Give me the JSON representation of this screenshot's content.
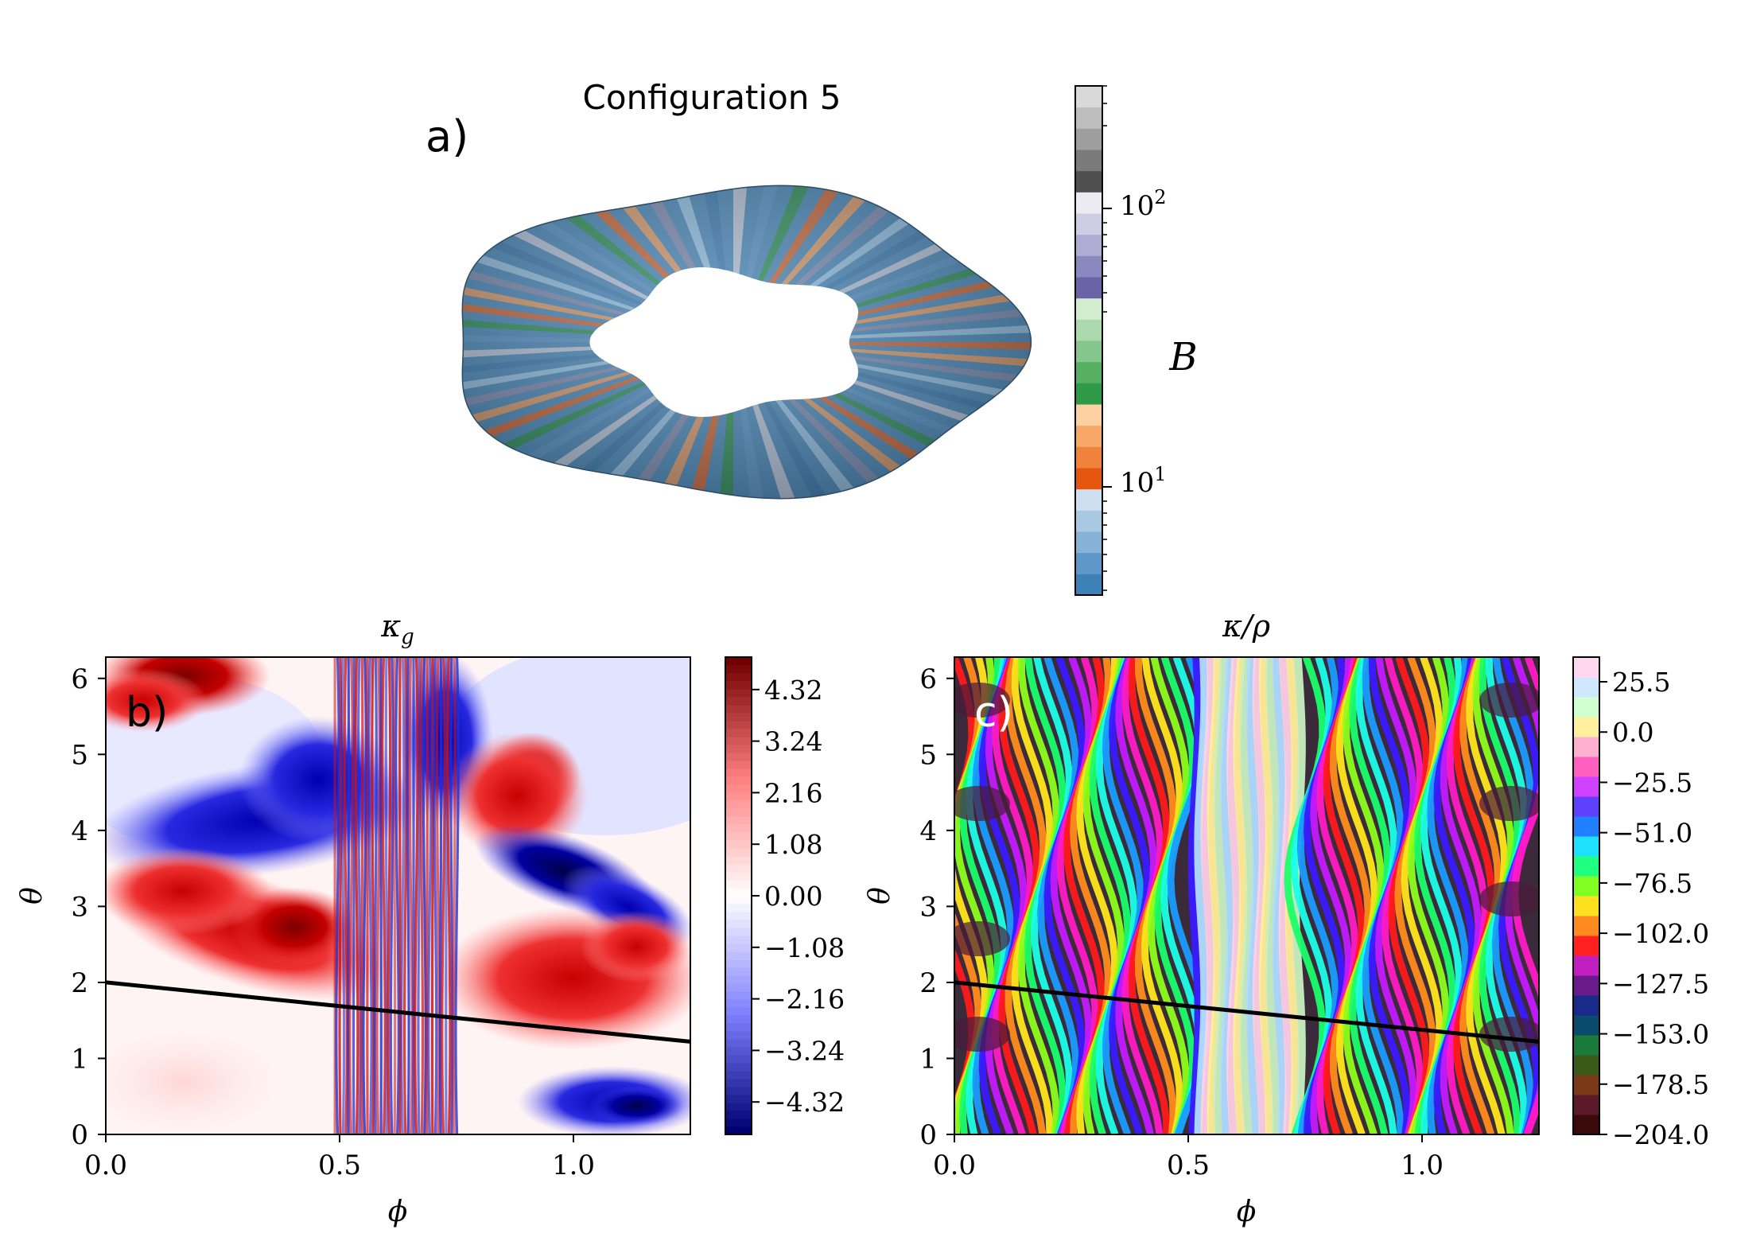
{
  "figure": {
    "title": "Configuration 5",
    "panel_a_label": "a)",
    "panel_b_label": "b)",
    "panel_c_label": "c)"
  },
  "colors": {
    "background": "#ffffff",
    "line": "#000000",
    "positive": "#cc0000",
    "negative": "#0000cc"
  },
  "chart_data": [
    {
      "type": "surface-3d",
      "panel": "a",
      "title": "Configuration 5",
      "colorbar": {
        "label": "B",
        "scale": "log",
        "tick_labels": [
          "10^1",
          "10^2"
        ],
        "colors_bottom_to_top": [
          "#3e80b8",
          "#5f98c8",
          "#85b2d6",
          "#a9c9e3",
          "#cddff0",
          "#e6550d",
          "#f0823c",
          "#f8a866",
          "#fcd0a0",
          "#2e9a47",
          "#57b061",
          "#84c68b",
          "#abd9ad",
          "#d2ecce",
          "#6a63a7",
          "#8b87bf",
          "#aeacd2",
          "#cfcde4",
          "#ecebf4",
          "#4f4f4f",
          "#7a7a7a",
          "#9e9e9e",
          "#bdbdbd",
          "#d9d9d9"
        ]
      }
    },
    {
      "type": "heatmap",
      "panel": "b",
      "title": "κ_g",
      "xlabel": "ϕ",
      "ylabel": "θ",
      "xlim": [
        0.0,
        1.25
      ],
      "ylim": [
        0,
        6.28
      ],
      "x_ticks": [
        "0.0",
        "0.5",
        "1.0"
      ],
      "y_ticks": [
        "0",
        "1",
        "2",
        "3",
        "4",
        "5",
        "6"
      ],
      "colorbar_ticks": [
        "4.32",
        "3.24",
        "2.16",
        "1.08",
        "0.00",
        "−1.08",
        "−2.16",
        "−3.24",
        "−4.32"
      ],
      "colorbar_range": [
        -5.0,
        5.0
      ],
      "overlay_line": {
        "x": [
          0.0,
          1.25
        ],
        "y": [
          2.0,
          1.22
        ]
      }
    },
    {
      "type": "heatmap",
      "panel": "c",
      "title": "κ/ρ",
      "xlabel": "ϕ",
      "ylabel": "θ",
      "xlim": [
        0.0,
        1.25
      ],
      "ylim": [
        0,
        6.28
      ],
      "x_ticks": [
        "0.0",
        "0.5",
        "1.0"
      ],
      "y_ticks": [
        "0",
        "1",
        "2",
        "3",
        "4",
        "5",
        "6"
      ],
      "colorbar_ticks": [
        "25.5",
        "0.0",
        "−25.5",
        "−51.0",
        "−76.5",
        "−102.0",
        "−127.5",
        "−153.0",
        "−178.5",
        "−204.0"
      ],
      "colorbar_range": [
        -204.0,
        38.0
      ],
      "overlay_line": {
        "x": [
          0.0,
          1.25
        ],
        "y": [
          2.0,
          1.22
        ]
      }
    }
  ]
}
